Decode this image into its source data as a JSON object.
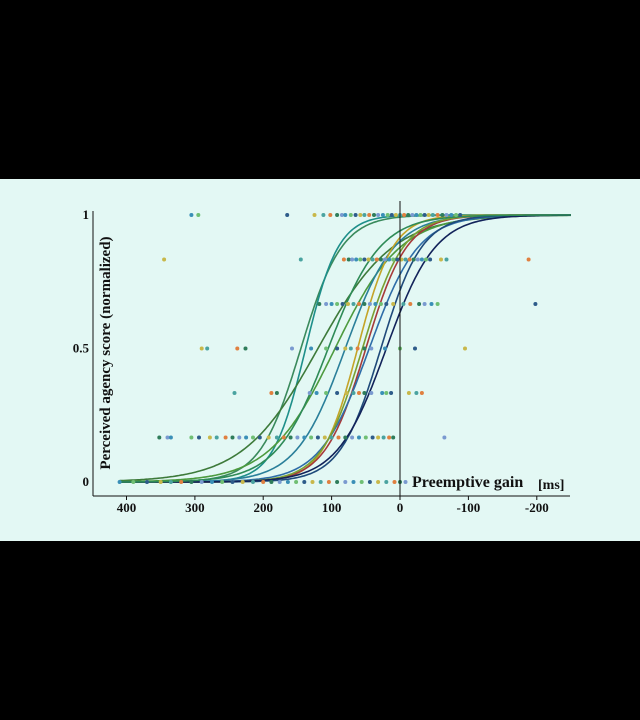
{
  "chart_data": {
    "type": "scatter",
    "title": "",
    "xlabel": "Preemptive gain",
    "xunit": "[ms]",
    "ylabel": "Perceived agency score (normalized)",
    "xlim": [
      450,
      -250
    ],
    "ylim": [
      0,
      1
    ],
    "x_reversed": true,
    "x_ticks": [
      400,
      300,
      200,
      100,
      0,
      -100,
      -200
    ],
    "x_tick_labels": [
      "400",
      "300",
      "200",
      "100",
      "0",
      "-100",
      "-200"
    ],
    "y_ticks": [
      0,
      0.5,
      1
    ],
    "y_tick_labels": [
      "0",
      "0.5",
      "1"
    ],
    "grid": false,
    "vline_at": 0,
    "curves": [
      {
        "color": "#3a8a5c",
        "x50": 145,
        "scale": 30
      },
      {
        "color": "#1e8f8a",
        "x50": 138,
        "scale": 24
      },
      {
        "color": "#3d7a3a",
        "x50": 120,
        "scale": 55
      },
      {
        "color": "#4c9a3e",
        "x50": 95,
        "scale": 48
      },
      {
        "color": "#2a7f9a",
        "x50": 80,
        "scale": 36
      },
      {
        "color": "#c4a428",
        "x50": 62,
        "scale": 26
      },
      {
        "color": "#a63a3a",
        "x50": 50,
        "scale": 30
      },
      {
        "color": "#2e6da8",
        "x50": 45,
        "scale": 36
      },
      {
        "color": "#7aa032",
        "x50": 55,
        "scale": 30
      },
      {
        "color": "#1f4a7a",
        "x50": 28,
        "scale": 30
      },
      {
        "color": "#12235a",
        "x50": 20,
        "scale": 36
      },
      {
        "color": "#2e8b57",
        "x50": 105,
        "scale": 38
      }
    ],
    "points": [
      {
        "y": 1,
        "x": [
          305,
          295,
          165,
          125,
          112,
          102,
          92,
          85,
          80,
          72,
          65,
          58,
          52,
          45,
          38,
          32,
          25,
          18,
          12,
          6,
          0,
          -6,
          -12,
          -18,
          -24,
          -30,
          -36,
          -42,
          -48,
          -55,
          -62,
          -68,
          -75,
          -82,
          -88
        ]
      },
      {
        "y": 0.8333,
        "x": [
          345,
          145,
          82,
          75,
          70,
          64,
          58,
          52,
          46,
          40,
          34,
          28,
          22,
          16,
          10,
          4,
          -2,
          -8,
          -14,
          -20,
          -26,
          -32,
          -38,
          -44,
          -60,
          -68,
          -188
        ]
      },
      {
        "y": 0.6667,
        "x": [
          118,
          108,
          100,
          92,
          84,
          76,
          68,
          60,
          52,
          44,
          36,
          28,
          20,
          10,
          -5,
          -15,
          -28,
          -36,
          -46,
          -55,
          -198
        ]
      },
      {
        "y": 0.5,
        "x": [
          290,
          282,
          238,
          226,
          158,
          130,
          108,
          92,
          80,
          72,
          62,
          52,
          42,
          22,
          0,
          -22,
          -95
        ]
      },
      {
        "y": 0.3333,
        "x": [
          242,
          188,
          180,
          132,
          122,
          108,
          92,
          78,
          68,
          60,
          52,
          42,
          26,
          20,
          13,
          -13,
          -24,
          -32
        ]
      },
      {
        "y": 0.1667,
        "x": [
          352,
          340,
          335,
          305,
          294,
          278,
          268,
          255,
          245,
          235,
          225,
          215,
          205,
          192,
          180,
          170,
          160,
          150,
          140,
          130,
          120,
          110,
          100,
          90,
          80,
          70,
          60,
          50,
          40,
          32,
          24,
          16,
          10,
          -65
        ]
      },
      {
        "y": 0,
        "x": [
          410,
          390,
          370,
          350,
          335,
          320,
          305,
          290,
          275,
          260,
          245,
          230,
          215,
          200,
          188,
          176,
          164,
          152,
          140,
          128,
          116,
          104,
          92,
          80,
          68,
          56,
          44,
          32,
          20,
          8,
          0,
          -8
        ]
      }
    ],
    "point_colors": [
      "#3a8fb7",
      "#6fbf73",
      "#2e5c8a",
      "#c8b84a",
      "#4aa3a0",
      "#e08040",
      "#2f7d5a",
      "#7a9ad0"
    ]
  }
}
